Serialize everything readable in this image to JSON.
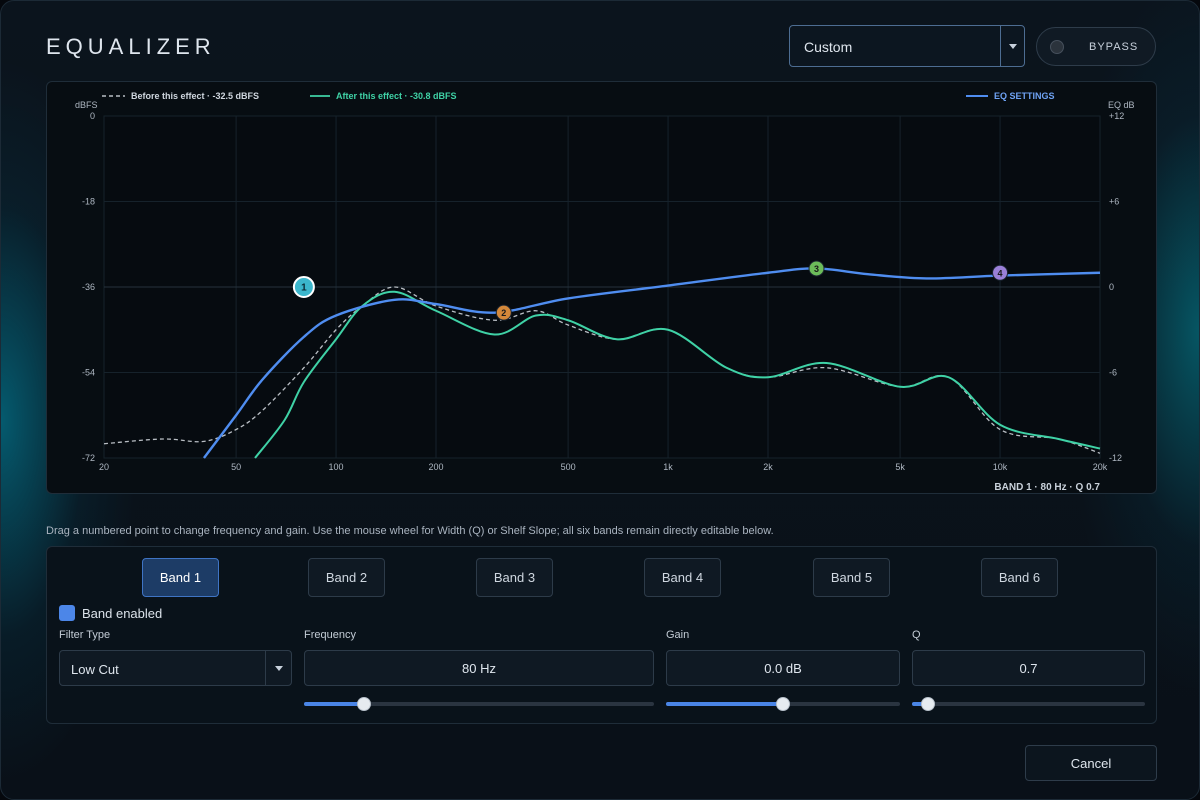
{
  "header": {
    "title": "EQUALIZER",
    "preset_value": "Custom",
    "bypass_label": "BYPASS"
  },
  "graph": {
    "legend_before": "Before this effect · -32.5 dBFS",
    "legend_after": "After this effect · -30.8 dBFS",
    "legend_eq": "EQ SETTINGS",
    "left_axis_unit": "dBFS",
    "right_axis_unit": "EQ dB",
    "left_ticks": [
      "0",
      "-18",
      "-36",
      "-54",
      "-72"
    ],
    "right_ticks": [
      "+12",
      "+6",
      "0",
      "-6",
      "-12"
    ],
    "freq_ticks": [
      "20",
      "50",
      "100",
      "200",
      "500",
      "1k",
      "2k",
      "5k",
      "10k",
      "20k"
    ],
    "selected_readout": "BAND 1 · 80 Hz · Q 0.7",
    "colors": {
      "before": "#b9bec4",
      "after": "#3fd2a6",
      "eq": "#4f8df0"
    }
  },
  "chart_data": {
    "type": "line",
    "x_scale": "log",
    "x_unit": "Hz",
    "xlim": [
      20,
      20000
    ],
    "ylim_left": [
      -72,
      0
    ],
    "ylim_right": [
      -12,
      12
    ],
    "series": [
      {
        "name": "Before this effect · -32.5 dBFS",
        "axis": "left",
        "x": [
          20,
          30,
          40,
          50,
          60,
          80,
          100,
          120,
          150,
          200,
          300,
          400,
          500,
          700,
          1000,
          1500,
          2000,
          3000,
          5000,
          7000,
          10000,
          15000,
          20000
        ],
        "y": [
          -69,
          -68,
          -68.5,
          -66,
          -62,
          -53,
          -45,
          -40,
          -36,
          -40,
          -43,
          -41,
          -44,
          -47,
          -45,
          -53,
          -55,
          -53,
          -57,
          -55,
          -66,
          -68,
          -71
        ]
      },
      {
        "name": "After this effect · -30.8 dBFS",
        "axis": "left",
        "x": [
          57,
          70,
          80,
          100,
          120,
          150,
          200,
          300,
          400,
          500,
          700,
          1000,
          1500,
          2000,
          3000,
          5000,
          7000,
          10000,
          15000,
          20000
        ],
        "y": [
          -72,
          -64,
          -56,
          -47,
          -40,
          -37,
          -41,
          -46,
          -42,
          -43,
          -47,
          -45,
          -53,
          -55,
          -52,
          -57,
          -55,
          -65,
          -68,
          -70
        ]
      },
      {
        "name": "EQ SETTINGS",
        "axis": "right",
        "x": [
          40,
          50,
          60,
          80,
          100,
          150,
          200,
          300,
          500,
          1000,
          2000,
          2800,
          4000,
          6000,
          10000,
          20000
        ],
        "y": [
          -12,
          -9,
          -6.5,
          -3.5,
          -2,
          -0.9,
          -1.2,
          -1.8,
          -0.8,
          0.1,
          1,
          1.3,
          0.9,
          0.6,
          0.8,
          1
        ]
      }
    ],
    "points": [
      {
        "label": "1",
        "freq": 80,
        "gain": 0
      },
      {
        "label": "2",
        "freq": 320,
        "gain": -1.8
      },
      {
        "label": "3",
        "freq": 2800,
        "gain": 1.3
      },
      {
        "label": "4",
        "freq": 10000,
        "gain": 1
      }
    ],
    "point_colors": [
      "#3bb6cc",
      "#d4883a",
      "#6cbc5a",
      "#9a80d8"
    ],
    "grid": true
  },
  "hint": "Drag a numbered point to change frequency and gain. Use the mouse wheel for Width (Q) or Shelf Slope; all six bands remain directly editable below.",
  "bands": [
    {
      "label": "Band 1"
    },
    {
      "label": "Band 2"
    },
    {
      "label": "Band 3"
    },
    {
      "label": "Band 4"
    },
    {
      "label": "Band 5"
    },
    {
      "label": "Band 6"
    }
  ],
  "controls": {
    "band_enabled_label": "Band enabled",
    "band_enabled": true,
    "filter_type_label": "Filter Type",
    "filter_type_value": "Low Cut",
    "frequency_label": "Frequency",
    "frequency_value": "80 Hz",
    "frequency_level": 0.17,
    "gain_label": "Gain",
    "gain_value": "0.0 dB",
    "gain_level": 0.5,
    "q_label": "Q",
    "q_value": "0.7",
    "q_level": 0.07
  },
  "footer": {
    "cancel_label": "Cancel"
  }
}
